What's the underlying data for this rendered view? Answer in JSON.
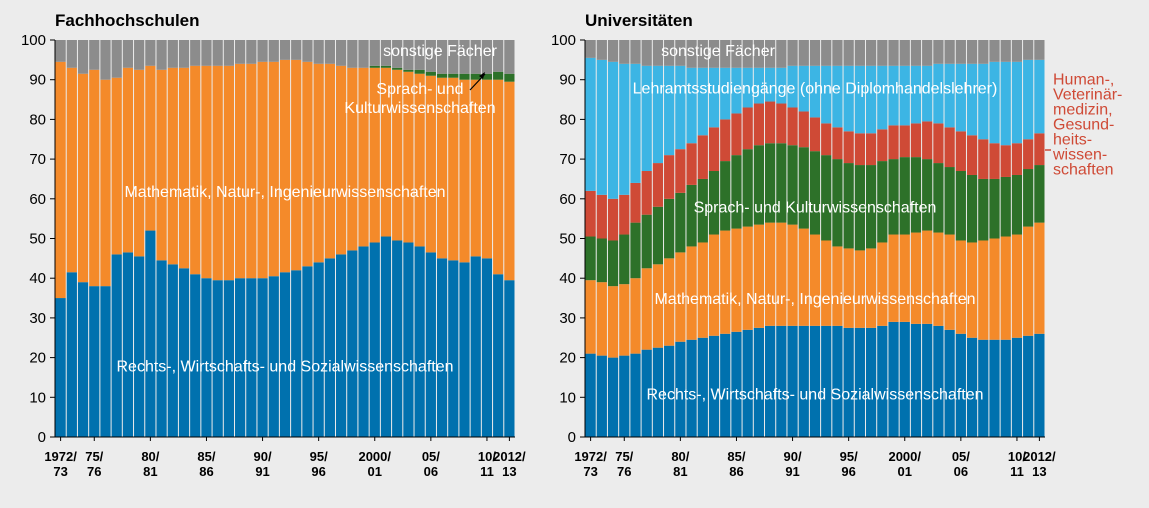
{
  "chart_data": [
    {
      "type": "bar",
      "stacked": true,
      "title": "Fachhochschulen",
      "categories": [
        "1972/\n73",
        null,
        null,
        "75/\n76",
        null,
        null,
        null,
        null,
        "80/\n81",
        null,
        null,
        null,
        null,
        "85/\n86",
        null,
        null,
        null,
        null,
        "90/\n91",
        null,
        null,
        null,
        null,
        "95/\n96",
        null,
        null,
        null,
        null,
        "2000/\n01",
        null,
        null,
        null,
        null,
        "05/\n06",
        null,
        null,
        null,
        null,
        "10/\n11",
        null,
        "2012/\n13"
      ],
      "ylim": [
        0,
        100
      ],
      "yticks": [
        0,
        10,
        20,
        30,
        40,
        50,
        60,
        70,
        80,
        90,
        100
      ],
      "series": [
        {
          "name": "Rechts-, Wirtschafts- und Sozialwissenschaften",
          "color": "#0071ae",
          "values": [
            35,
            41.5,
            39,
            38,
            38,
            46,
            46.5,
            45.5,
            52,
            44.5,
            43.5,
            42.5,
            41,
            40,
            39.5,
            39.5,
            40,
            40,
            40,
            40.5,
            41.5,
            42,
            43,
            44,
            45,
            46,
            47,
            48,
            49,
            50.5,
            49.5,
            49,
            48,
            46.5,
            45,
            44.5,
            44,
            45.5,
            45,
            41,
            39.5
          ]
        },
        {
          "name": "Mathematik, Natur-, Ingenieurwissenschaften",
          "color": "#f48a2a",
          "values": [
            59.5,
            51.5,
            52.5,
            54.5,
            52,
            44.5,
            46.5,
            47,
            41.5,
            48,
            49.5,
            50.5,
            52.5,
            53.5,
            54,
            54,
            54,
            54,
            54.5,
            54,
            53.5,
            53,
            51.5,
            50,
            49,
            47.5,
            46,
            45,
            44,
            42.5,
            43,
            43,
            43.5,
            44.5,
            45.5,
            46,
            46,
            44.5,
            45,
            49,
            50
          ]
        },
        {
          "name": "Sprach- und\nKulturwissenschaften",
          "color": "#2d7129",
          "values": [
            0,
            0,
            0,
            0,
            0,
            0,
            0,
            0,
            0,
            0,
            0,
            0,
            0,
            0,
            0,
            0,
            0,
            0,
            0,
            0,
            0,
            0,
            0,
            0,
            0,
            0,
            0,
            0,
            0.5,
            0.5,
            0.5,
            0.5,
            1,
            1,
            1,
            1,
            1.5,
            1.5,
            1.5,
            2,
            2
          ]
        },
        {
          "name": "sonstige Fächer",
          "color": "#8c8c8c",
          "values": [
            5.5,
            7,
            8.5,
            7.5,
            10,
            9.5,
            7,
            7.5,
            6.5,
            7.5,
            7,
            7,
            6.5,
            6.5,
            6.5,
            6.5,
            6,
            6,
            5.5,
            5.5,
            5,
            5,
            5.5,
            6,
            6,
            6.5,
            7,
            7,
            6.5,
            6.5,
            7,
            7.5,
            7.5,
            8,
            8.5,
            8.5,
            8.5,
            8.5,
            8.5,
            8,
            8.5
          ]
        }
      ]
    },
    {
      "type": "bar",
      "stacked": true,
      "title": "Universitäten",
      "categories": [
        "1972/\n73",
        null,
        null,
        "75/\n76",
        null,
        null,
        null,
        null,
        "80/\n81",
        null,
        null,
        null,
        null,
        "85/\n86",
        null,
        null,
        null,
        null,
        "90/\n91",
        null,
        null,
        null,
        null,
        "95/\n96",
        null,
        null,
        null,
        null,
        "2000/\n01",
        null,
        null,
        null,
        null,
        "05/\n06",
        null,
        null,
        null,
        null,
        "10/\n11",
        null,
        "2012/\n13"
      ],
      "ylim": [
        0,
        100
      ],
      "yticks": [
        0,
        10,
        20,
        30,
        40,
        50,
        60,
        70,
        80,
        90,
        100
      ],
      "series": [
        {
          "name": "Rechts-, Wirtschafts- und Sozialwissenschaften",
          "color": "#0071ae",
          "values": [
            21,
            20.5,
            20,
            20.5,
            21,
            22,
            22.5,
            23,
            24,
            24.5,
            25,
            25.5,
            26,
            26.5,
            27,
            27.5,
            28,
            28,
            28,
            28,
            28,
            28,
            28,
            27.5,
            27.5,
            27.5,
            28,
            29,
            29,
            28.5,
            28.5,
            28,
            27,
            26,
            25,
            24.5,
            24.5,
            24.5,
            25,
            25.5,
            26
          ]
        },
        {
          "name": "Mathematik, Natur-, Ingenieurwissenschaften",
          "color": "#f48a2a",
          "values": [
            18.5,
            18.5,
            18,
            18,
            19,
            20.5,
            21,
            22,
            22.5,
            23.5,
            24,
            25.5,
            26,
            26,
            26,
            26,
            26,
            26,
            25.5,
            24.5,
            23,
            21.5,
            20,
            20,
            19.5,
            20,
            21,
            22,
            22,
            23,
            23.5,
            23.5,
            24,
            23.5,
            24,
            25,
            25.5,
            26,
            26,
            27.5,
            28
          ]
        },
        {
          "name": "Sprach- und Kulturwissenschaften",
          "color": "#2d7129",
          "values": [
            11,
            11,
            11.5,
            12.5,
            14,
            13.5,
            14.5,
            15,
            15,
            15.5,
            16,
            16,
            17.5,
            18.5,
            19.5,
            20,
            20,
            20,
            20,
            20.5,
            21,
            21.5,
            22,
            21.5,
            21.5,
            21,
            20.5,
            19,
            19.5,
            19,
            18,
            17.5,
            17,
            17.5,
            17,
            15.5,
            15,
            15,
            15,
            14.5,
            14.5
          ]
        },
        {
          "name": "Human-,\nVeterinär-\nmedizin,\nGesund-\nheits-\nwissen-\nschaften",
          "color": "#cf4a36",
          "values": [
            11.5,
            11,
            10.5,
            10,
            10,
            11,
            11,
            11,
            11,
            10.5,
            11,
            11,
            10.5,
            10.5,
            10.5,
            10.5,
            10.5,
            10,
            9.5,
            9,
            8.5,
            8,
            8,
            8,
            8,
            8,
            8,
            8.5,
            8,
            8.5,
            9.5,
            10,
            10,
            10,
            10,
            10,
            9,
            8,
            8,
            7.5,
            8
          ]
        },
        {
          "name": "Lehramtsstudiengänge (ohne Diplomhandelslehrer)",
          "color": "#3cb5e4",
          "values": [
            33.5,
            34,
            34.5,
            33,
            30,
            26.5,
            24.5,
            22.5,
            21,
            19,
            17,
            15,
            13,
            11.5,
            10,
            9,
            8.5,
            9,
            10.5,
            11.5,
            13,
            14.5,
            15.5,
            16.5,
            17,
            17,
            16,
            15,
            15,
            14.5,
            14,
            15,
            16,
            17,
            18,
            19,
            20.5,
            21,
            20.5,
            20,
            18.5
          ]
        },
        {
          "name": "sonstige Fächer",
          "color": "#8c8c8c",
          "values": [
            4.5,
            5,
            5.5,
            6,
            6,
            6.5,
            6.5,
            6.5,
            6.5,
            7,
            7,
            7,
            7,
            7,
            7,
            7,
            7,
            7,
            6.5,
            6.5,
            6.5,
            6.5,
            6.5,
            6.5,
            6.5,
            6.5,
            6.5,
            6.5,
            6.5,
            6.5,
            6.5,
            6,
            6,
            6,
            6,
            6,
            5.5,
            5.5,
            5.5,
            5,
            5
          ]
        }
      ]
    }
  ]
}
